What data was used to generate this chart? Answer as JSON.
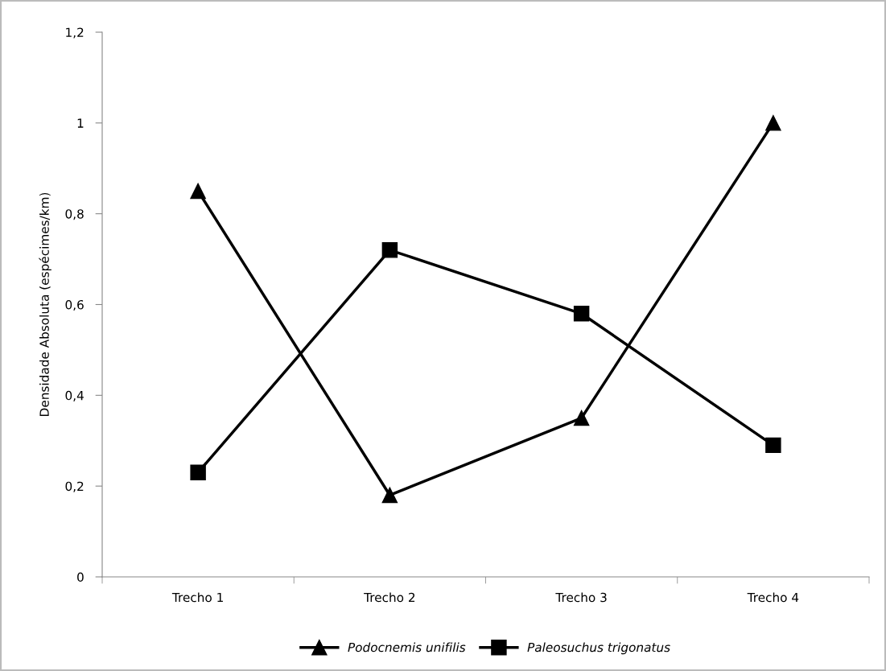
{
  "chart_data": {
    "type": "line",
    "ylabel": "Densidade Absoluta (espécimes/km)",
    "categories": [
      "Trecho 1",
      "Trecho 2",
      "Trecho 3",
      "Trecho 4"
    ],
    "series": [
      {
        "name": "Podocnemis unifilis",
        "color": "#000000",
        "marker": "triangle",
        "values": [
          0.85,
          0.18,
          0.35,
          1.0
        ]
      },
      {
        "name": "Paleosuchus trigonatus",
        "color": "#000000",
        "marker": "square",
        "values": [
          0.23,
          0.72,
          0.58,
          0.29
        ]
      }
    ],
    "ylim": [
      0,
      1.2
    ],
    "yticks": [
      0,
      {
        "value": 0.2,
        "label": "0,2"
      },
      {
        "value": 0.4,
        "label": "0,4"
      },
      {
        "value": 0.6,
        "label": "0,6"
      },
      {
        "value": 0.8,
        "label": "0,8"
      },
      1,
      {
        "value": 1.2,
        "label": "1,2"
      }
    ],
    "grid": false,
    "legend": "bottom",
    "line_style": "solid"
  }
}
